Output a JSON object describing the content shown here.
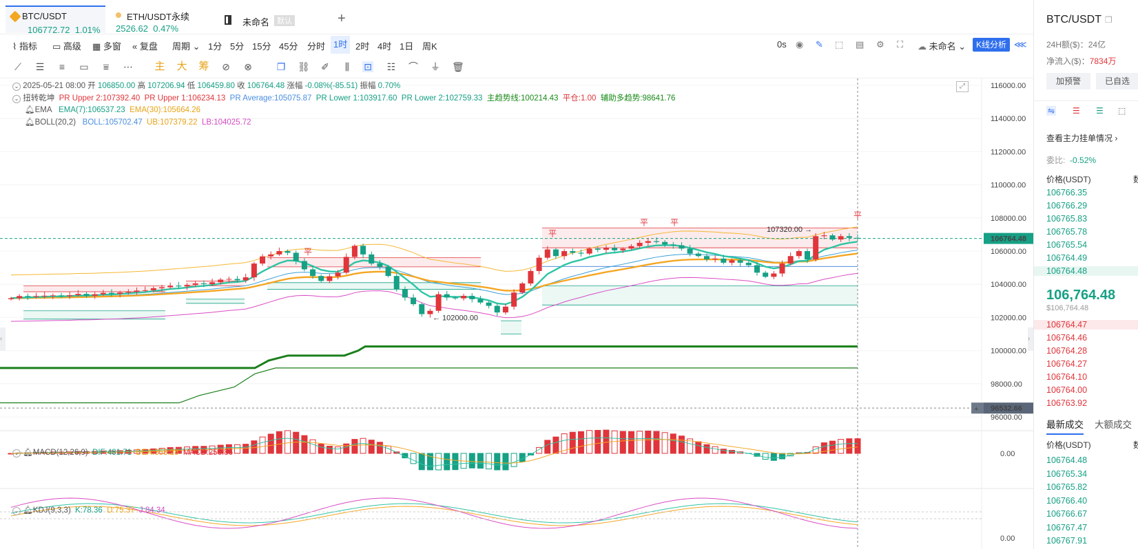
{
  "tabs": [
    {
      "symbol": "BTC/USDT",
      "price": "106772.72",
      "change": "1.01%"
    },
    {
      "symbol": "ETH/USDT永续",
      "price": "2526.62",
      "change": "0.47%"
    },
    {
      "symbol": "未命名",
      "badge": "默认"
    }
  ],
  "toolbar": {
    "indicators": "指标",
    "advanced": "高级",
    "multiwindow": "多窗",
    "replay": "复盘",
    "period": "周期",
    "timeframes": [
      "1分",
      "5分",
      "15分",
      "45分",
      "分时",
      "1时",
      "2时",
      "4时",
      "1日",
      "周K"
    ],
    "selected_timeframe": "1时",
    "countdown": "0s",
    "layout_name": "未命名",
    "kline_analysis": "K线分析"
  },
  "drawing_tools": {
    "main": "主",
    "large": "大",
    "accumulate": "筹"
  },
  "legend": {
    "ohlc": {
      "date": "2025-05-21 08:00",
      "open_label": "开",
      "open": "106850.00",
      "high_label": "高",
      "high": "107206.94",
      "low_label": "低",
      "low": "106459.80",
      "close_label": "收",
      "close": "106764.48",
      "chg_label": "涨幅",
      "chg": "-0.08%(-85.51)",
      "amp_label": "振幅",
      "amp": "0.70%"
    },
    "niuzhuan": {
      "name": "扭转乾坤",
      "pr_upper2": "PR Upper 2:107392.40",
      "pr_upper1": "PR Upper 1:106234.13",
      "pr_avg": "PR Average:105075.87",
      "pr_lower1": "PR Lower 1:103917.60",
      "pr_lower2": "PR Lower 2:102759.33",
      "main_trend": "主趋势线:100214.43",
      "flat": "平仓:1.00",
      "aux_trend": "辅助多趋势:98641.76"
    },
    "ema": {
      "name": "EMA",
      "ema7": "EMA(7):106537.23",
      "ema30": "EMA(30):105664.26"
    },
    "boll": {
      "name": "BOLL(20,2)",
      "boll": "BOLL:105702.47",
      "ub": "UB:107379.22",
      "lb": "LB:104025.72"
    },
    "macd": {
      "name": "MACD(12,26,9)",
      "dif": "DIF:481.71",
      "dea": "DEA:353.28",
      "macd": "MACD:256.86"
    },
    "kdj": {
      "name": "KDJ(9,3,3)",
      "k": "K:78.36",
      "d": "D:75.37",
      "j": "J:84.34"
    }
  },
  "price_axis": {
    "ticks": [
      "116000.00",
      "114000.00",
      "112000.00",
      "110000.00",
      "108000.00",
      "106000.00",
      "104000.00",
      "102000.00",
      "100000.00",
      "98000.00",
      "96000.00"
    ],
    "current_price": "106764.48",
    "crosshair_price": "96532.66",
    "macd_zero": "0.00",
    "kdj_zero": "0.00"
  },
  "annotations": {
    "high_mark": "107320.00",
    "low_mark": "102000.00",
    "flat_label": "平"
  },
  "right_panel": {
    "symbol": "BTC/USDT",
    "vol_24h_label": "24H额($)：",
    "vol_24h": "24亿",
    "net_inflow_label": "净流入($)：",
    "net_inflow": "7834万",
    "alert_button": "加预警",
    "watch_button": "已自选",
    "view_orders": "查看主力挂单情况",
    "ratio_label": "委比:",
    "ratio": "-0.52%",
    "price_header": "价格(USDT)",
    "qty_header": "数",
    "asks": [
      "106766.35",
      "106766.29",
      "106765.83",
      "106765.78",
      "106765.54",
      "106764.49",
      "106764.48"
    ],
    "last_price": "106,764.48",
    "last_price_usd": "$106,764.48",
    "bids": [
      "106764.47",
      "106764.46",
      "106764.28",
      "106764.27",
      "106764.10",
      "106764.00",
      "106763.92"
    ],
    "trades_tab": "最新成交",
    "big_trades_tab": "大额成交",
    "trades": [
      "106764.48",
      "106765.34",
      "106765.82",
      "106766.40",
      "106766.67",
      "106767.47",
      "106767.91"
    ]
  },
  "colors": {
    "up": "#16a085",
    "down": "#e0353b",
    "ema7": "#2ec4a4",
    "ema30": "#f5a623",
    "boll_mid": "#3aa0d8",
    "boll_ub": "#f5b731",
    "boll_lb": "#d94bc4",
    "trend": "#1a7f1a",
    "accent": "#2f6fed"
  }
}
